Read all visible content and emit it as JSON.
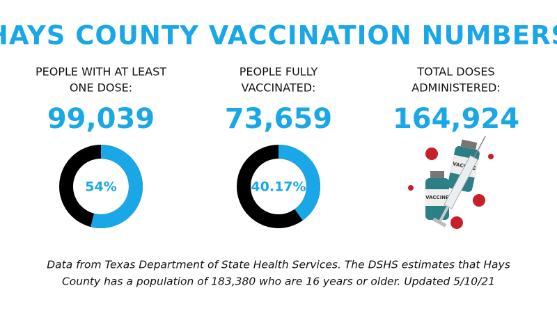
{
  "title": "HAYS COUNTY VACCINATION NUMBERS",
  "stats": [
    {
      "label_lines": [
        "PEOPLE WITH AT LEAST",
        "ONE DOSE:"
      ],
      "value": "99,039",
      "donut": {
        "value": 54,
        "label": "54%"
      }
    },
    {
      "label_lines": [
        "PEOPLE FULLY",
        "VACCINATED:"
      ],
      "value": "73,659",
      "donut": {
        "value": 40.17,
        "label": "40.17%"
      }
    },
    {
      "label_lines": [
        "TOTAL DOSES",
        "ADMINISTERED:"
      ],
      "value": "164,924"
    }
  ],
  "vial_label": "VACCINE",
  "footnote_lines": [
    "Data from Texas Department of State Health Services. The DSHS estimates that Hays",
    "County has a population of 183,380 who are 16 years or older. Updated 5/10/21"
  ]
}
